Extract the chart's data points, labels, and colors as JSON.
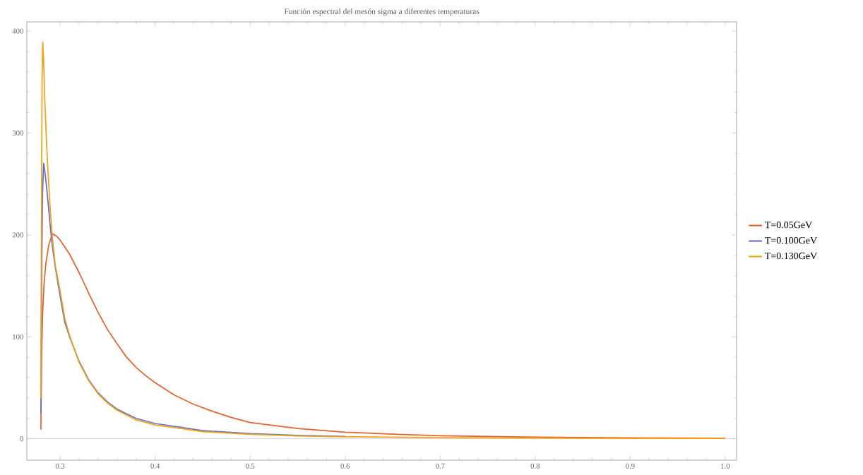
{
  "chart_data": {
    "type": "line",
    "title": "Función espectral del mesón sigma a diferentes temperaturas",
    "xlim": [
      0.265,
      1.012
    ],
    "ylim": [
      -21,
      409
    ],
    "xticks": [
      0.3,
      0.4,
      0.5,
      0.6,
      0.7,
      0.8,
      0.9,
      {
        "value": 1.0,
        "label": "1.0"
      }
    ],
    "yticks": [
      0,
      100,
      200,
      300,
      400
    ],
    "grid": false,
    "legend": "right",
    "line_style": "solid",
    "ref_lines": [
      {
        "axis": "y",
        "value": 0,
        "color": "#c8c8c8"
      }
    ],
    "series": [
      {
        "name": "T=0.05GeV",
        "color": "#e8622e",
        "x": [
          0.2798,
          0.2805,
          0.2815,
          0.283,
          0.285,
          0.288,
          0.292,
          0.296,
          0.3,
          0.31,
          0.32,
          0.33,
          0.34,
          0.35,
          0.36,
          0.37,
          0.38,
          0.39,
          0.4,
          0.42,
          0.44,
          0.46,
          0.48,
          0.5,
          0.55,
          0.6,
          0.65,
          0.7,
          0.75,
          0.8,
          0.85,
          0.9,
          0.95,
          1.0
        ],
        "values": [
          9,
          80,
          120,
          150,
          172,
          190,
          201,
          199,
          195,
          181,
          163,
          143,
          124,
          107,
          93,
          80,
          70,
          62,
          55,
          43,
          34,
          27,
          21,
          16,
          10,
          6.5,
          4.5,
          3,
          2.2,
          1.6,
          1.2,
          0.9,
          0.7,
          0.5
        ]
      },
      {
        "name": "T=0.100GeV",
        "color": "#6470c8",
        "x": [
          0.2798,
          0.28,
          0.2805,
          0.2815,
          0.2827,
          0.284,
          0.286,
          0.288,
          0.29,
          0.292,
          0.295,
          0.3,
          0.305,
          0.31,
          0.32,
          0.33,
          0.34,
          0.35,
          0.36,
          0.38,
          0.4,
          0.45,
          0.5,
          0.55,
          0.6
        ],
        "values": [
          25,
          40,
          150,
          240,
          270,
          262,
          245,
          225,
          205,
          188,
          168,
          140,
          114,
          100,
          76,
          58,
          45,
          36,
          29,
          20,
          15,
          8,
          5,
          3.3,
          2.3
        ]
      },
      {
        "name": "T=0.130GeV",
        "color": "#f3a117",
        "x": [
          0.2798,
          0.2803,
          0.281,
          0.2817,
          0.2825,
          0.284,
          0.286,
          0.288,
          0.29,
          0.292,
          0.295,
          0.3,
          0.305,
          0.31,
          0.32,
          0.33,
          0.34,
          0.35,
          0.36,
          0.38,
          0.4,
          0.45,
          0.5,
          0.55,
          0.6,
          0.7,
          0.8,
          0.9,
          1.0
        ],
        "values": [
          40,
          200,
          350,
          389,
          375,
          330,
          285,
          250,
          220,
          196,
          170,
          145,
          118,
          101,
          75,
          57,
          44,
          35,
          28,
          18.5,
          13.5,
          7,
          4.3,
          2.8,
          2,
          1.1,
          0.7,
          0.4,
          0.3
        ]
      }
    ]
  }
}
